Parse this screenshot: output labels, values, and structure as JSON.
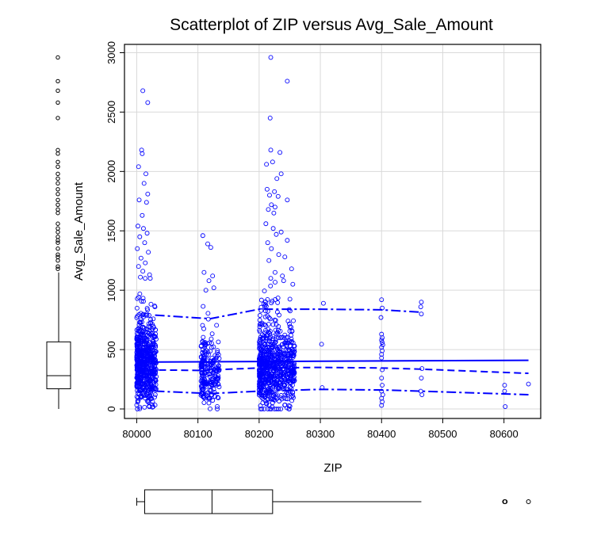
{
  "chart_data": {
    "type": "scatter",
    "title": "Scatterplot of ZIP versus Avg_Sale_Amount",
    "xlabel": "ZIP",
    "ylabel": "Avg_Sale_Amount",
    "xlim": [
      79980,
      80660
    ],
    "ylim": [
      -80,
      3070
    ],
    "x_ticks": [
      80000,
      80100,
      80200,
      80300,
      80400,
      80500,
      80600
    ],
    "y_ticks": [
      0,
      500,
      1000,
      1500,
      2000,
      2500,
      3000
    ],
    "grid": true,
    "marker": "open-circle",
    "color": "#0000ff",
    "clusters": [
      {
        "x_range": [
          80000,
          80032
        ],
        "count": 600,
        "y_center": 360,
        "y_spread": 320
      },
      {
        "x_range": [
          80105,
          80135
        ],
        "count": 220,
        "y_center": 290,
        "y_spread": 260
      },
      {
        "x_range": [
          80200,
          80258
        ],
        "count": 720,
        "y_center": 340,
        "y_spread": 330
      }
    ],
    "points": [
      {
        "x": 80010,
        "y": 2680
      },
      {
        "x": 80018,
        "y": 2580
      },
      {
        "x": 80008,
        "y": 2180
      },
      {
        "x": 80009,
        "y": 2150
      },
      {
        "x": 80003,
        "y": 2040
      },
      {
        "x": 80015,
        "y": 1980
      },
      {
        "x": 80012,
        "y": 1900
      },
      {
        "x": 80018,
        "y": 1810
      },
      {
        "x": 80004,
        "y": 1760
      },
      {
        "x": 80016,
        "y": 1740
      },
      {
        "x": 80009,
        "y": 1630
      },
      {
        "x": 80002,
        "y": 1540
      },
      {
        "x": 80011,
        "y": 1520
      },
      {
        "x": 80017,
        "y": 1480
      },
      {
        "x": 80005,
        "y": 1450
      },
      {
        "x": 80013,
        "y": 1400
      },
      {
        "x": 80001,
        "y": 1350
      },
      {
        "x": 80019,
        "y": 1320
      },
      {
        "x": 80007,
        "y": 1270
      },
      {
        "x": 80014,
        "y": 1230
      },
      {
        "x": 80003,
        "y": 1200
      },
      {
        "x": 80010,
        "y": 1160
      },
      {
        "x": 80021,
        "y": 1130
      },
      {
        "x": 80006,
        "y": 1110
      },
      {
        "x": 80108,
        "y": 1460
      },
      {
        "x": 80116,
        "y": 1390
      },
      {
        "x": 80121,
        "y": 1360
      },
      {
        "x": 80110,
        "y": 1150
      },
      {
        "x": 80124,
        "y": 1120
      },
      {
        "x": 80118,
        "y": 1080
      },
      {
        "x": 80126,
        "y": 1020
      },
      {
        "x": 80113,
        "y": 1000
      },
      {
        "x": 80219,
        "y": 2960
      },
      {
        "x": 80246,
        "y": 2760
      },
      {
        "x": 80218,
        "y": 2450
      },
      {
        "x": 80219,
        "y": 2180
      },
      {
        "x": 80234,
        "y": 2160
      },
      {
        "x": 80222,
        "y": 2080
      },
      {
        "x": 80212,
        "y": 2060
      },
      {
        "x": 80236,
        "y": 1980
      },
      {
        "x": 80229,
        "y": 1940
      },
      {
        "x": 80213,
        "y": 1850
      },
      {
        "x": 80225,
        "y": 1830
      },
      {
        "x": 80217,
        "y": 1800
      },
      {
        "x": 80231,
        "y": 1790
      },
      {
        "x": 80246,
        "y": 1760
      },
      {
        "x": 80220,
        "y": 1720
      },
      {
        "x": 80226,
        "y": 1700
      },
      {
        "x": 80215,
        "y": 1680
      },
      {
        "x": 80224,
        "y": 1650
      },
      {
        "x": 80211,
        "y": 1560
      },
      {
        "x": 80223,
        "y": 1520
      },
      {
        "x": 80236,
        "y": 1490
      },
      {
        "x": 80228,
        "y": 1470
      },
      {
        "x": 80246,
        "y": 1420
      },
      {
        "x": 80214,
        "y": 1400
      },
      {
        "x": 80220,
        "y": 1350
      },
      {
        "x": 80232,
        "y": 1300
      },
      {
        "x": 80242,
        "y": 1280
      },
      {
        "x": 80216,
        "y": 1250
      },
      {
        "x": 80253,
        "y": 1180
      },
      {
        "x": 80226,
        "y": 1150
      },
      {
        "x": 80238,
        "y": 1120
      },
      {
        "x": 80219,
        "y": 1100
      },
      {
        "x": 80240,
        "y": 1080
      },
      {
        "x": 80255,
        "y": 1050
      },
      {
        "x": 80305,
        "y": 890
      },
      {
        "x": 80302,
        "y": 545
      },
      {
        "x": 80303,
        "y": 180
      },
      {
        "x": 80400,
        "y": 920
      },
      {
        "x": 80401,
        "y": 850
      },
      {
        "x": 80399,
        "y": 770
      },
      {
        "x": 80400,
        "y": 630
      },
      {
        "x": 80401,
        "y": 600
      },
      {
        "x": 80400,
        "y": 580
      },
      {
        "x": 80401,
        "y": 560
      },
      {
        "x": 80402,
        "y": 540
      },
      {
        "x": 80400,
        "y": 520
      },
      {
        "x": 80401,
        "y": 490
      },
      {
        "x": 80400,
        "y": 460
      },
      {
        "x": 80400,
        "y": 430
      },
      {
        "x": 80401,
        "y": 330
      },
      {
        "x": 80400,
        "y": 260
      },
      {
        "x": 80401,
        "y": 200
      },
      {
        "x": 80400,
        "y": 150
      },
      {
        "x": 80402,
        "y": 120
      },
      {
        "x": 80400,
        "y": 90
      },
      {
        "x": 80401,
        "y": 60
      },
      {
        "x": 80400,
        "y": 30
      },
      {
        "x": 80465,
        "y": 900
      },
      {
        "x": 80464,
        "y": 860
      },
      {
        "x": 80465,
        "y": 800
      },
      {
        "x": 80466,
        "y": 340
      },
      {
        "x": 80465,
        "y": 260
      },
      {
        "x": 80464,
        "y": 150
      },
      {
        "x": 80466,
        "y": 120
      },
      {
        "x": 80601,
        "y": 200
      },
      {
        "x": 80601,
        "y": 150
      },
      {
        "x": 80602,
        "y": 20
      },
      {
        "x": 80640,
        "y": 210
      }
    ],
    "lines": [
      {
        "style": "solid",
        "x": [
          80000,
          80640
        ],
        "y": [
          395,
          410
        ]
      },
      {
        "style": "dashed",
        "x": [
          80000,
          80100,
          80200,
          80300,
          80400,
          80465,
          80640
        ],
        "y": [
          330,
          325,
          345,
          350,
          345,
          335,
          300
        ]
      },
      {
        "style": "dashdot",
        "x": [
          80000,
          80030,
          80120,
          80200,
          80300,
          80400,
          80465,
          80640
        ],
        "y": [
          150,
          150,
          130,
          150,
          165,
          160,
          150,
          120
        ]
      },
      {
        "style": "dashdot",
        "x": [
          80030,
          80120,
          80200,
          80300,
          80400,
          80465
        ],
        "y": [
          790,
          760,
          840,
          840,
          835,
          815
        ]
      }
    ],
    "x_boxplot": {
      "min": 80000,
      "q1": 80013,
      "median": 80123,
      "q3": 80222,
      "whisker_high": 80465,
      "outliers": [
        80601,
        80602,
        80640
      ]
    },
    "y_boxplot": {
      "min": 0,
      "q1": 170,
      "median": 280,
      "q3": 565,
      "whisker_high": 1150,
      "outliers": [
        2960,
        2760,
        2680,
        2580,
        2450,
        2180,
        2150,
        2080,
        2040,
        1980,
        1940,
        1900,
        1850,
        1810,
        1760,
        1720,
        1680,
        1650,
        1560,
        1520,
        1490,
        1450,
        1420,
        1400,
        1350,
        1300,
        1280,
        1250,
        1200,
        1180
      ]
    }
  }
}
